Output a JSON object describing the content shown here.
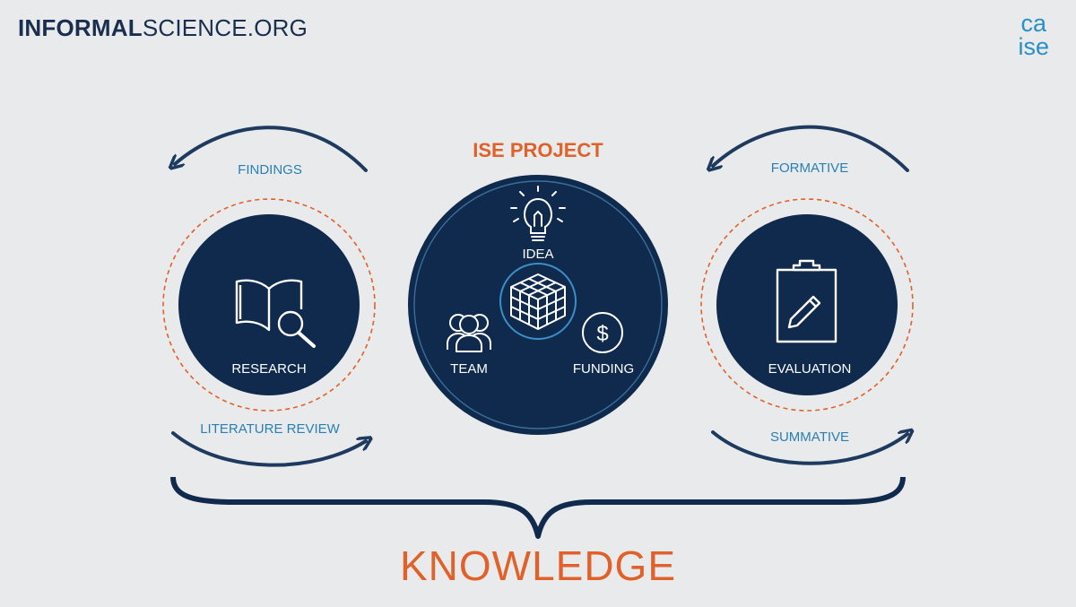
{
  "header": {
    "brand_bold": "INFORMAL",
    "brand_regular": "SCIENCE.ORG",
    "logo_line1": "ca",
    "logo_line2": "ise"
  },
  "diagram": {
    "center_title": "ISE PROJECT",
    "research_label": "RESEARCH",
    "evaluation_label": "EVALUATION",
    "idea_label": "IDEA",
    "team_label": "TEAM",
    "funding_label": "FUNDING",
    "findings_label": "FINDINGS",
    "literature_review_label": "LITERATURE REVIEW",
    "formative_label": "FORMATIVE",
    "summative_label": "SUMMATIVE",
    "knowledge_label": "KNOWLEDGE",
    "colors": {
      "navy": "#0f2a4d",
      "arrow": "#1e3a5f",
      "orange": "#e0612a",
      "blue_text": "#2a7fb5",
      "background": "#e9eaeb"
    },
    "icons": [
      "book-search-icon",
      "lightbulb-icon",
      "cube-icon",
      "team-icon",
      "dollar-icon",
      "clipboard-pencil-icon"
    ]
  }
}
